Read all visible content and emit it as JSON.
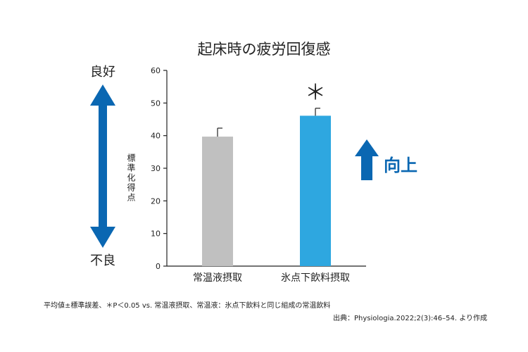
{
  "chart_data": {
    "type": "bar",
    "title": "起床時の疲労回復感",
    "ylabel": "標準化得点",
    "ylim": [
      0,
      60
    ],
    "yticks": [
      0,
      10,
      20,
      30,
      40,
      50,
      60
    ],
    "grid": false,
    "categories": [
      "常温液摂取",
      "氷点下飲料摂取"
    ],
    "values": [
      39.7,
      46.1
    ],
    "errors": [
      2.6,
      2.3
    ],
    "bar_colors": [
      "#c0c0c0",
      "#2ea7e0"
    ],
    "significance": {
      "category_index": 1,
      "label": "＊"
    },
    "scale": {
      "top_label": "良好",
      "bottom_label": "不良",
      "color": "#0a67b2"
    },
    "improvement": {
      "label": "向上",
      "color": "#0a67b2"
    }
  },
  "footnote": "平均値±標準誤差、＊P＜0.05 vs. 常温液摂取、常温液：氷点下飲料と同じ組成の常温飲料",
  "source": "出典：Physiologia.2022;2(3):46–54. より作成"
}
